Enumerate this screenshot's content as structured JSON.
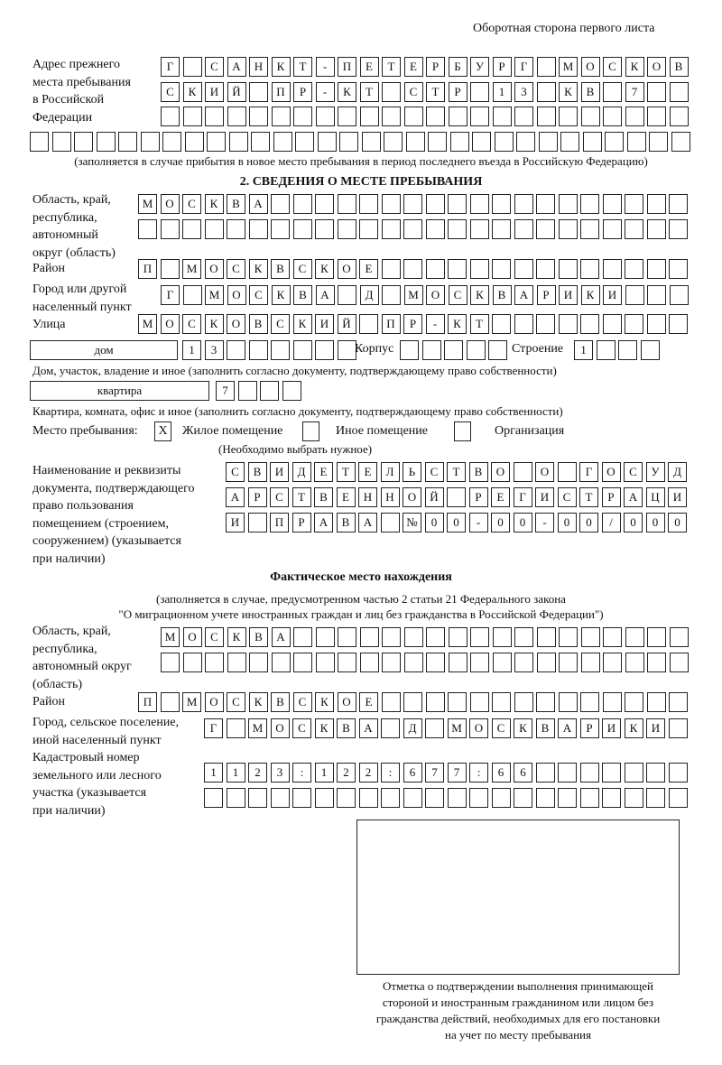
{
  "header": {
    "page_side": "Оборотная сторона первого листа"
  },
  "previous_address": {
    "label": "Адрес прежнего\nместа пребывания\nв Российской\nФедерации",
    "rows": [
      "Г САНКТ-ПЕТЕРБУРГ МОСКОВ",
      "СКИЙ ПР-КТ СТР 13 КВ 7  ",
      "                        ",
      "                              "
    ],
    "note": "(заполняется в случае прибытия в новое место пребывания в период последнего въезда в Российскую Федерацию)"
  },
  "section2": {
    "title": "2. СВЕДЕНИЯ О МЕСТЕ ПРЕБЫВАНИЯ",
    "region_label": "Область, край,\nреспублика,\nавтономный\nокруг (область)",
    "region_rows": [
      "МОСКВА                   ",
      "                         "
    ],
    "district_label": "Район",
    "district_row": "П МОСКВСКОЕ              ",
    "city_label": "Город или другой\nнаселенный пункт",
    "city_row": "Г МОСКВА Д МОСКВАРИКИ   ",
    "street_label": "Улица",
    "street_row": "МОСКОВСКИЙ ПР-КТ         ",
    "house_type": "дом",
    "house_row": "13      ",
    "korpus_label": "Корпус",
    "korpus_row": "     ",
    "building_label": "Строение",
    "building_row": "1   ",
    "house_note": "Дом, участок, владение и иное (заполнить согласно документу, подтверждающему право собственности)",
    "apt_type": "квартира",
    "apt_row": "7   ",
    "apt_note": "Квартира, комната, офис и иное (заполнить согласно документу, подтверждающему право собственности)",
    "stay_place_label": "Место пребывания:",
    "options": [
      {
        "label": "Жилое помещение",
        "mark": "X"
      },
      {
        "label": "Иное помещение",
        "mark": ""
      },
      {
        "label": "Организация",
        "mark": ""
      }
    ],
    "choose_note": "(Необходимо выбрать нужное)",
    "doc_label": "Наименование и реквизиты\nдокумента, подтверждающего\nправо пользования\nпомещением (строением,\nсооружением) (указывается\nпри наличии)",
    "doc_rows": [
      "СВИДЕТЕЛЬСТВО О ГОСУД",
      "АРСТВЕННОЙ РЕГИСТРАЦИ",
      "И ПРАВА №00-00-00/000"
    ]
  },
  "actual": {
    "title": "Фактическое место нахождения",
    "note1": "(заполняется в случае, предусмотренном частью 2 статьи 21 Федерального закона",
    "note2": "\"О миграционном учете иностранных граждан и лиц без гражданства в Российской Федерации\")",
    "region_label": "Область, край,\nреспублика,\nавтономный округ\n(область)",
    "region_rows": [
      "МОСКВА                  ",
      "                        "
    ],
    "district_label": "Район",
    "district_row": "П МОСКВСКОЕ              ",
    "city_label": "Город, сельское поселение,\nиной населенный пункт",
    "city_row": "Г МОСКВА Д МОСКВАРИКИ ",
    "cadastral_label": "Кадастровый номер\nземельного или лесного\nучастка (указывается\nпри наличии)",
    "cadastral_rows": [
      "1123:122:677:66       ",
      "                      "
    ]
  },
  "stamp": {
    "caption": "Отметка о подтверждении выполнения принимающей\nстороной и иностранным гражданином или лицом без\nгражданства действий, необходимых для его постановки\nна учет по месту пребывания"
  }
}
